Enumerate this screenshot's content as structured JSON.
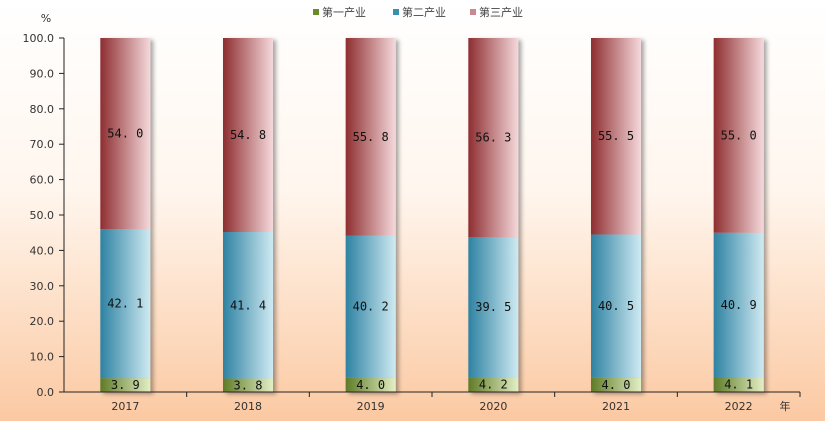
{
  "chart_data": {
    "type": "bar",
    "stacked": true,
    "normalized": true,
    "categories": [
      "2017",
      "2018",
      "2019",
      "2020",
      "2021",
      "2022"
    ],
    "series": [
      {
        "name": "第一产业",
        "values": [
          3.9,
          3.8,
          4.0,
          4.2,
          4.0,
          4.1
        ],
        "labels": [
          "3.9",
          "3.8",
          "4.0",
          "4.2",
          "4.0",
          "4.1"
        ],
        "color": "#7c9a3c"
      },
      {
        "name": "第二产业",
        "values": [
          42.1,
          41.4,
          40.2,
          39.5,
          40.5,
          40.9
        ],
        "labels": [
          "42.1",
          "41.4",
          "40.2",
          "39.5",
          "40.5",
          "40.9"
        ],
        "color": "#3f8fa8"
      },
      {
        "name": "第三产业",
        "values": [
          54.0,
          54.8,
          55.8,
          56.3,
          55.5,
          55.0
        ],
        "labels": [
          "54.0",
          "54.8",
          "55.8",
          "56.3",
          "55.5",
          "55.0"
        ],
        "color": "#9e3a3a"
      }
    ],
    "ylim": [
      0,
      100
    ],
    "yticks": [
      "0.0",
      "10.0",
      "20.0",
      "30.0",
      "40.0",
      "50.0",
      "60.0",
      "70.0",
      "80.0",
      "90.0",
      "100.0"
    ],
    "ylabel": "%",
    "xlabel": "年",
    "legend_position": "top-center",
    "grid": false,
    "background": "gradient-white-to-peach"
  }
}
